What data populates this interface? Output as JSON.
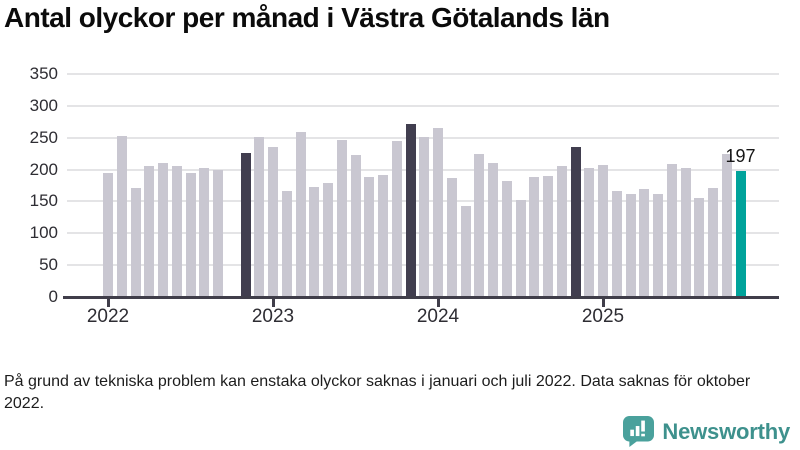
{
  "title": "Antal olyckor per månad i Västra Götalands län",
  "footnote": "På grund av tekniska problem kan enstaka olyckor saknas i januari och juli 2022. Data saknas för oktober 2022.",
  "logo": {
    "text": "Newsworthy",
    "icon": "bar-chart-speech-bubble-icon",
    "icon_color": "#4aa19c",
    "text_color": "#3e918d"
  },
  "chart_data": {
    "type": "bar",
    "title": "Antal olyckor per månad i Västra Götalands län",
    "xlabel": "",
    "ylabel": "",
    "ylim": [
      0,
      350
    ],
    "y_ticks": [
      0,
      50,
      100,
      150,
      200,
      250,
      300,
      350
    ],
    "grid": "horizontal",
    "legend": "none",
    "x_ticks": [
      {
        "label": "2022",
        "month": "2022-01"
      },
      {
        "label": "2023",
        "month": "2023-01"
      },
      {
        "label": "2024",
        "month": "2024-01"
      },
      {
        "label": "2025",
        "month": "2025-01"
      }
    ],
    "colors": {
      "bar_default": "#c9c7d1",
      "bar_highlight": "#413e4f",
      "bar_current": "#00a39b",
      "grid": "#e4e4e6",
      "axis": "#403e4a",
      "text": "#2e2d33"
    },
    "value_label": {
      "month": "2025-11",
      "text": "197"
    },
    "series": [
      {
        "name": "Antal olyckor",
        "points": [
          {
            "month": "2022-01",
            "value": 195,
            "color": "gray"
          },
          {
            "month": "2022-02",
            "value": 253,
            "color": "gray"
          },
          {
            "month": "2022-03",
            "value": 171,
            "color": "gray"
          },
          {
            "month": "2022-04",
            "value": 205,
            "color": "gray"
          },
          {
            "month": "2022-05",
            "value": 211,
            "color": "gray"
          },
          {
            "month": "2022-06",
            "value": 205,
            "color": "gray"
          },
          {
            "month": "2022-07",
            "value": 195,
            "color": "gray"
          },
          {
            "month": "2022-08",
            "value": 203,
            "color": "gray"
          },
          {
            "month": "2022-09",
            "value": 199,
            "color": "gray"
          },
          {
            "month": "2022-10",
            "value": null,
            "color": "gray"
          },
          {
            "month": "2022-11",
            "value": 226,
            "color": "dark"
          },
          {
            "month": "2022-12",
            "value": 251,
            "color": "gray"
          },
          {
            "month": "2023-01",
            "value": 236,
            "color": "gray"
          },
          {
            "month": "2023-02",
            "value": 166,
            "color": "gray"
          },
          {
            "month": "2023-03",
            "value": 259,
            "color": "gray"
          },
          {
            "month": "2023-04",
            "value": 173,
            "color": "gray"
          },
          {
            "month": "2023-05",
            "value": 179,
            "color": "gray"
          },
          {
            "month": "2023-06",
            "value": 247,
            "color": "gray"
          },
          {
            "month": "2023-07",
            "value": 223,
            "color": "gray"
          },
          {
            "month": "2023-08",
            "value": 188,
            "color": "gray"
          },
          {
            "month": "2023-09",
            "value": 191,
            "color": "gray"
          },
          {
            "month": "2023-10",
            "value": 245,
            "color": "gray"
          },
          {
            "month": "2023-11",
            "value": 271,
            "color": "dark"
          },
          {
            "month": "2023-12",
            "value": 251,
            "color": "gray"
          },
          {
            "month": "2024-01",
            "value": 266,
            "color": "gray"
          },
          {
            "month": "2024-02",
            "value": 187,
            "color": "gray"
          },
          {
            "month": "2024-03",
            "value": 143,
            "color": "gray"
          },
          {
            "month": "2024-04",
            "value": 224,
            "color": "gray"
          },
          {
            "month": "2024-05",
            "value": 211,
            "color": "gray"
          },
          {
            "month": "2024-06",
            "value": 182,
            "color": "gray"
          },
          {
            "month": "2024-07",
            "value": 153,
            "color": "gray"
          },
          {
            "month": "2024-08",
            "value": 188,
            "color": "gray"
          },
          {
            "month": "2024-09",
            "value": 190,
            "color": "gray"
          },
          {
            "month": "2024-10",
            "value": 206,
            "color": "gray"
          },
          {
            "month": "2024-11",
            "value": 235,
            "color": "dark"
          },
          {
            "month": "2024-12",
            "value": 203,
            "color": "gray"
          },
          {
            "month": "2025-01",
            "value": 207,
            "color": "gray"
          },
          {
            "month": "2025-02",
            "value": 167,
            "color": "gray"
          },
          {
            "month": "2025-03",
            "value": 161,
            "color": "gray"
          },
          {
            "month": "2025-04",
            "value": 170,
            "color": "gray"
          },
          {
            "month": "2025-05",
            "value": 162,
            "color": "gray"
          },
          {
            "month": "2025-06",
            "value": 209,
            "color": "gray"
          },
          {
            "month": "2025-07",
            "value": 203,
            "color": "gray"
          },
          {
            "month": "2025-08",
            "value": 155,
            "color": "gray"
          },
          {
            "month": "2025-09",
            "value": 171,
            "color": "gray"
          },
          {
            "month": "2025-10",
            "value": 224,
            "color": "gray"
          },
          {
            "month": "2025-11",
            "value": 197,
            "color": "teal"
          }
        ]
      }
    ]
  }
}
